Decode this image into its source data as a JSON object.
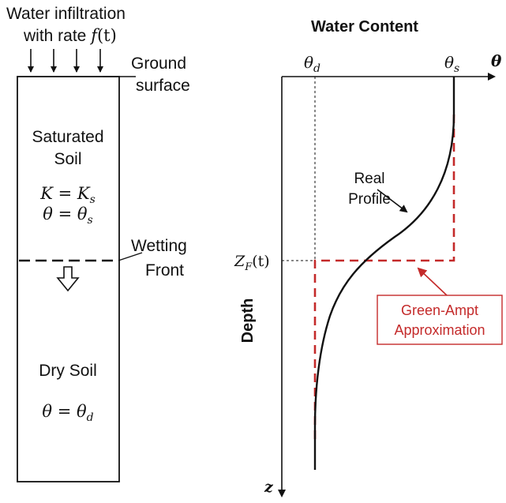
{
  "left_panel": {
    "infiltration_line1": "Water infiltration",
    "infiltration_line2_prefix": "with rate ",
    "infiltration_rate_symbol": "f",
    "infiltration_rate_arg": "(t)",
    "ground_label_line1": "Ground",
    "ground_label_line2": "surface",
    "saturated_line1": "Saturated",
    "saturated_line2": "Soil",
    "eq_k_lhs": "K",
    "eq_k_rhs": "K",
    "eq_k_sub": "s",
    "eq_theta_lhs": "θ",
    "eq_theta_rhs": "θ",
    "eq_theta_sub": "s",
    "wetting_line1": "Wetting",
    "wetting_line2": "Front",
    "dry_label": "Dry Soil",
    "eq_dry_lhs": "θ",
    "eq_dry_rhs": "θ",
    "eq_dry_sub": "d"
  },
  "right_panel": {
    "title": "Water Content",
    "theta_d_symbol": "θ",
    "theta_d_sub": "d",
    "theta_s_symbol": "θ",
    "theta_s_sub": "s",
    "theta_axis_label": "θ",
    "z_axis_label": "z",
    "depth_label": "Depth",
    "zf_symbol": "Z",
    "zf_sub": "F",
    "zf_arg": "(t)",
    "real_profile_line1": "Real",
    "real_profile_line2": "Profile",
    "green_ampt_line1": "Green-Ampt",
    "green_ampt_line2": "Approximation"
  },
  "colors": {
    "ink": "#111111",
    "accent_red": "#c42a2a"
  },
  "icons": [
    "down-arrow-icon",
    "hollow-down-arrow-icon",
    "axis-arrow-icon"
  ]
}
